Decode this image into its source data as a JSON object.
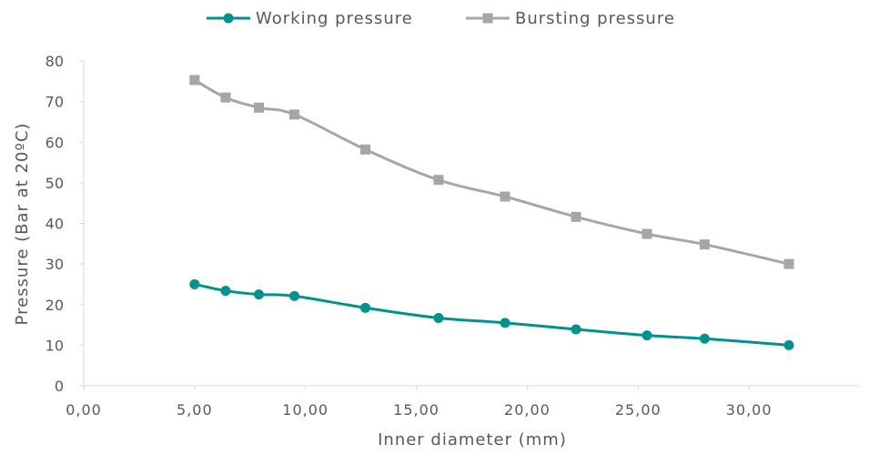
{
  "chart_data": {
    "type": "line",
    "title": "",
    "xlabel": "Inner diameter (mm)",
    "ylabel": "Pressure (Bar at 20ºC)",
    "xlim": [
      0,
      35
    ],
    "ylim": [
      0,
      80
    ],
    "x_ticks": [
      "0,00",
      "5,00",
      "10,00",
      "15,00",
      "20,00",
      "25,00",
      "30,00"
    ],
    "y_ticks": [
      "0",
      "10",
      "20",
      "30",
      "40",
      "50",
      "60",
      "70",
      "80"
    ],
    "grid": false,
    "legend_position": "top",
    "x": [
      5.0,
      6.4,
      7.9,
      9.5,
      12.7,
      16.0,
      19.0,
      22.2,
      25.4,
      28.0,
      31.8
    ],
    "series": [
      {
        "name": "Working pressure",
        "color": "#00928f",
        "marker": "circle",
        "values": [
          25.0,
          23.4,
          22.5,
          22.1,
          19.2,
          16.7,
          15.5,
          13.9,
          12.4,
          11.6,
          10.0
        ]
      },
      {
        "name": "Bursting pressure",
        "color": "#a6a6a6",
        "marker": "square",
        "values": [
          75.3,
          71.0,
          68.5,
          66.8,
          58.2,
          50.7,
          46.6,
          41.6,
          37.4,
          34.8,
          30.0
        ]
      }
    ]
  }
}
